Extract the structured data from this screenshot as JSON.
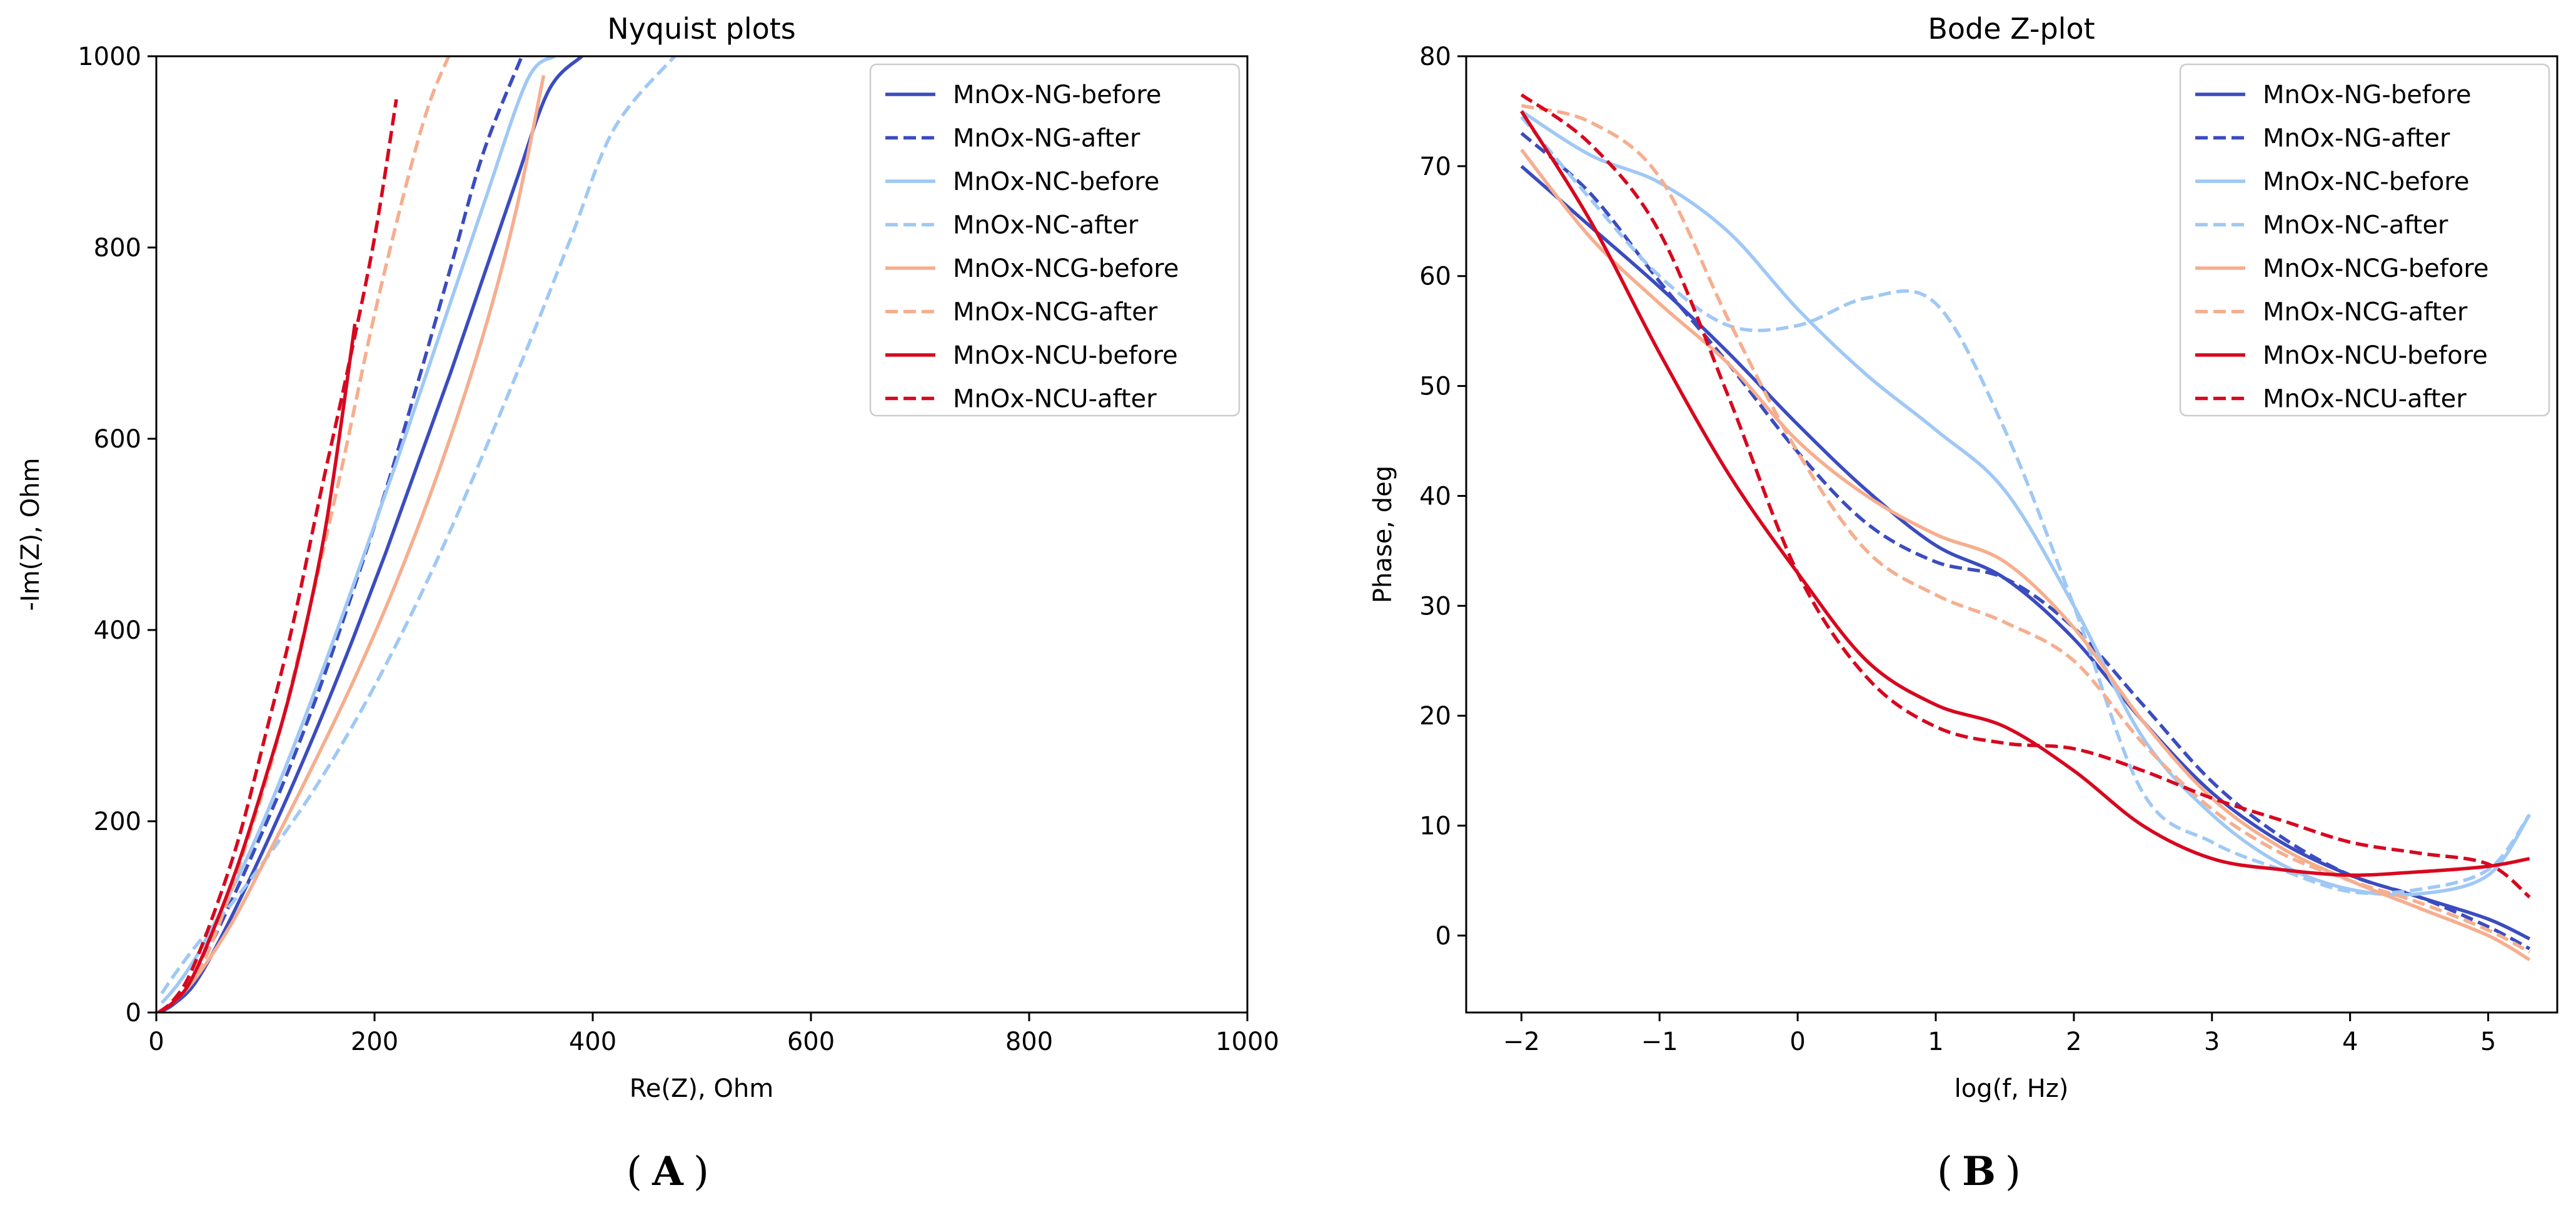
{
  "panels": {
    "a_label": "A",
    "b_label": "B"
  },
  "chart_data": [
    {
      "type": "line",
      "panel": "A",
      "title": "Nyquist plots",
      "xlabel": "Re(Z), Ohm",
      "ylabel": "-Im(Z), Ohm",
      "xlim": [
        0,
        1000
      ],
      "ylim": [
        0,
        1000
      ],
      "xticks": [
        0,
        200,
        400,
        600,
        800,
        1000
      ],
      "yticks": [
        0,
        200,
        400,
        600,
        800,
        1000
      ],
      "grid": false,
      "legend_position": "top-right",
      "series": [
        {
          "name": "MnOx-NG-before",
          "color": "#3b4cc0",
          "style": "solid",
          "x": [
            2,
            15,
            35,
            60,
            90,
            120,
            150,
            180,
            210,
            240,
            270,
            300,
            330,
            360,
            390
          ],
          "y": [
            0,
            8,
            30,
            80,
            150,
            225,
            305,
            390,
            480,
            575,
            670,
            770,
            870,
            965,
            1000
          ]
        },
        {
          "name": "MnOx-NG-after",
          "color": "#3b4cc0",
          "style": "dashed",
          "x": [
            2,
            15,
            35,
            60,
            90,
            120,
            150,
            180,
            210,
            240,
            270,
            300,
            335
          ],
          "y": [
            0,
            10,
            38,
            95,
            170,
            250,
            340,
            440,
            545,
            660,
            780,
            900,
            1000
          ]
        },
        {
          "name": "MnOx-NC-before",
          "color": "#9fc8f5",
          "style": "solid",
          "x": [
            5,
            20,
            40,
            70,
            100,
            140,
            180,
            220,
            260,
            300,
            340,
            365
          ],
          "y": [
            10,
            30,
            65,
            130,
            205,
            320,
            445,
            575,
            710,
            845,
            975,
            1000
          ]
        },
        {
          "name": "MnOx-NC-after",
          "color": "#9fc8f5",
          "style": "dashed",
          "x": [
            5,
            20,
            40,
            70,
            100,
            140,
            180,
            220,
            260,
            300,
            340,
            380,
            420,
            475
          ],
          "y": [
            20,
            45,
            75,
            115,
            160,
            225,
            300,
            385,
            480,
            585,
            695,
            810,
            925,
            1000
          ]
        },
        {
          "name": "MnOx-NCG-before",
          "color": "#f6ae8e",
          "style": "solid",
          "x": [
            2,
            20,
            40,
            70,
            100,
            140,
            180,
            220,
            260,
            300,
            330,
            355
          ],
          "y": [
            0,
            15,
            42,
            95,
            160,
            250,
            345,
            450,
            570,
            710,
            840,
            980
          ]
        },
        {
          "name": "MnOx-NCG-after",
          "color": "#f6ae8e",
          "style": "dashed",
          "x": [
            2,
            20,
            40,
            60,
            85,
            110,
            140,
            170,
            200,
            230,
            250,
            268
          ],
          "y": [
            0,
            15,
            45,
            100,
            185,
            280,
            420,
            570,
            730,
            870,
            950,
            1000
          ]
        },
        {
          "name": "MnOx-NCU-before",
          "color": "#d7081f",
          "style": "solid",
          "x": [
            2,
            15,
            30,
            50,
            75,
            100,
            125,
            150,
            165,
            182
          ],
          "y": [
            0,
            10,
            30,
            80,
            155,
            245,
            345,
            475,
            580,
            720
          ]
        },
        {
          "name": "MnOx-NCU-after",
          "color": "#d7081f",
          "style": "dashed",
          "x": [
            2,
            15,
            30,
            50,
            75,
            100,
            125,
            150,
            175,
            200,
            220
          ],
          "y": [
            0,
            12,
            38,
            95,
            180,
            290,
            405,
            540,
            670,
            810,
            955
          ]
        }
      ]
    },
    {
      "type": "line",
      "panel": "B",
      "title": "Bode Z-plot",
      "xlabel": "log(f, Hz)",
      "ylabel": "Phase, deg",
      "xlim": [
        -2.4,
        5.5
      ],
      "ylim": [
        -7,
        80
      ],
      "xticks": [
        -2,
        -1,
        0,
        1,
        2,
        3,
        4,
        5
      ],
      "yticks": [
        0,
        10,
        20,
        30,
        40,
        50,
        60,
        70,
        80
      ],
      "grid": false,
      "legend_position": "top-right",
      "series": [
        {
          "name": "MnOx-NG-before",
          "color": "#3b4cc0",
          "style": "solid",
          "x": [
            -2,
            -1.5,
            -1,
            -0.5,
            0,
            0.5,
            1,
            1.5,
            2,
            2.5,
            3,
            3.5,
            4,
            4.5,
            5,
            5.3
          ],
          "y": [
            70,
            64.5,
            59,
            53,
            46.5,
            40.5,
            35.5,
            32.5,
            27,
            19.5,
            13,
            8.5,
            5.5,
            3.5,
            1.5,
            -0.3
          ]
        },
        {
          "name": "MnOx-NG-after",
          "color": "#3b4cc0",
          "style": "dashed",
          "x": [
            -2,
            -1.5,
            -1,
            -0.5,
            0,
            0.5,
            1,
            1.5,
            2,
            2.5,
            3,
            3.5,
            4,
            4.5,
            5,
            5.3
          ],
          "y": [
            73,
            67.5,
            59.5,
            52,
            44,
            37.5,
            34,
            32.5,
            28,
            21,
            14,
            9,
            5.5,
            3.5,
            0.8,
            -1.2
          ]
        },
        {
          "name": "MnOx-NC-before",
          "color": "#9fc8f5",
          "style": "solid",
          "x": [
            -2,
            -1.5,
            -1,
            -0.5,
            0,
            0.5,
            1,
            1.5,
            2,
            2.5,
            3,
            3.5,
            4,
            4.5,
            5,
            5.3
          ],
          "y": [
            75,
            71,
            68.5,
            64,
            57,
            51,
            46,
            40.5,
            30,
            18,
            11,
            6.5,
            4.2,
            3.8,
            5.5,
            11
          ]
        },
        {
          "name": "MnOx-NC-after",
          "color": "#9fc8f5",
          "style": "dashed",
          "x": [
            -2,
            -1.5,
            -1,
            -0.5,
            0,
            0.5,
            1,
            1.5,
            2,
            2.5,
            3,
            3.5,
            4,
            4.5,
            5,
            5.3
          ],
          "y": [
            74.5,
            67,
            60,
            55.5,
            55.5,
            58,
            57.5,
            46,
            30,
            13,
            8.5,
            6,
            4,
            4.2,
            6,
            11
          ]
        },
        {
          "name": "MnOx-NCG-before",
          "color": "#f6ae8e",
          "style": "solid",
          "x": [
            -2,
            -1.5,
            -1,
            -0.5,
            0,
            0.5,
            1,
            1.5,
            2,
            2.5,
            3,
            3.5,
            4,
            4.5,
            5,
            5.3
          ],
          "y": [
            71.5,
            63.5,
            57.5,
            52,
            45,
            40,
            36.5,
            34,
            28,
            19.5,
            12.5,
            8,
            5,
            2.5,
            0,
            -2.2
          ]
        },
        {
          "name": "MnOx-NCG-after",
          "color": "#f6ae8e",
          "style": "dashed",
          "x": [
            -2,
            -1.5,
            -1,
            -0.5,
            0,
            0.5,
            1,
            1.5,
            2,
            2.5,
            3,
            3.5,
            4,
            4.5,
            5,
            5.3
          ],
          "y": [
            75.5,
            74,
            69,
            56,
            44,
            35,
            31,
            28.5,
            25,
            17.5,
            11.5,
            7.5,
            5,
            3,
            0.5,
            -1.5
          ]
        },
        {
          "name": "MnOx-NCU-before",
          "color": "#d7081f",
          "style": "solid",
          "x": [
            -2,
            -1.5,
            -1,
            -0.5,
            0,
            0.5,
            1,
            1.5,
            2,
            2.5,
            3,
            3.5,
            4,
            4.5,
            5,
            5.3
          ],
          "y": [
            75,
            65,
            53,
            42,
            33,
            25,
            21,
            19,
            15,
            10,
            7,
            6,
            5.5,
            5.8,
            6.3,
            7
          ]
        },
        {
          "name": "MnOx-NCU-after",
          "color": "#d7081f",
          "style": "dashed",
          "x": [
            -2,
            -1.5,
            -1,
            -0.5,
            0,
            0.5,
            1,
            1.5,
            2,
            2.5,
            3,
            3.5,
            4,
            4.5,
            5,
            5.3
          ],
          "y": [
            76.5,
            72,
            64,
            49,
            33,
            23.5,
            19,
            17.5,
            17,
            15,
            12.5,
            10.5,
            8.5,
            7.5,
            6.5,
            3.5
          ]
        }
      ]
    }
  ]
}
